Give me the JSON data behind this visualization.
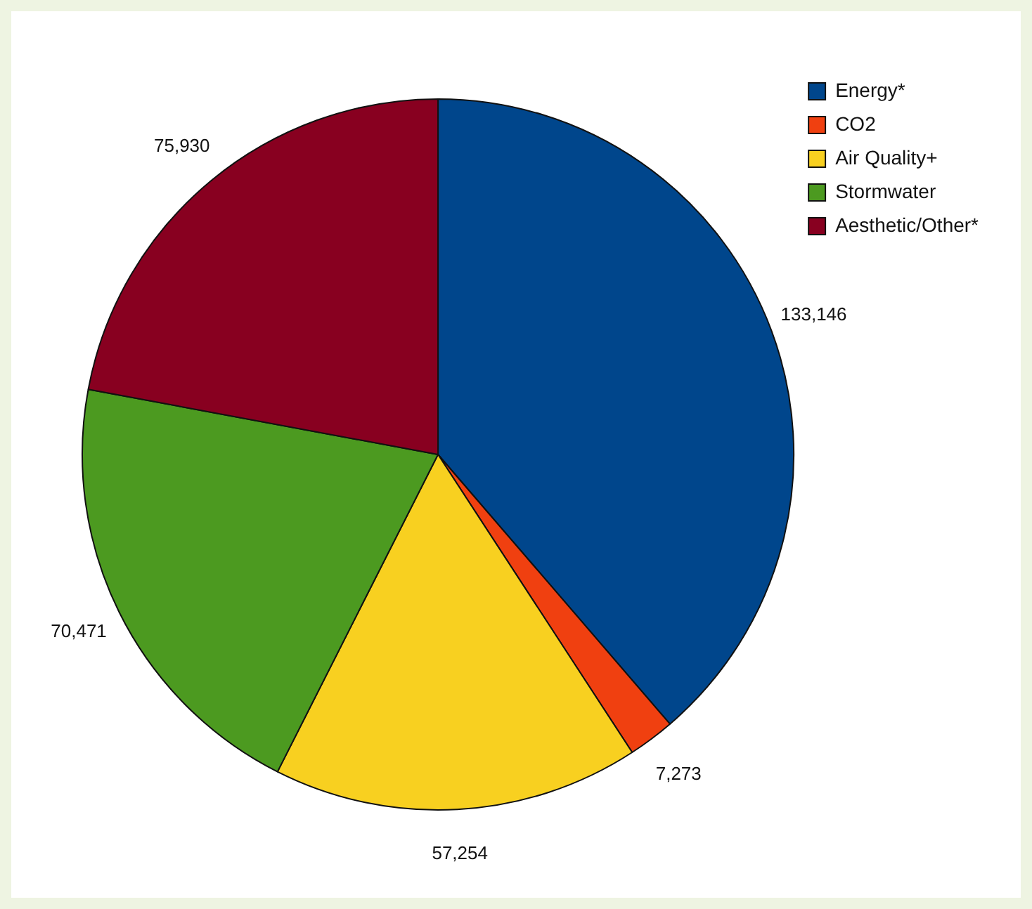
{
  "chart_data": {
    "type": "pie",
    "categories": [
      "Energy*",
      "CO2",
      "Air Quality+",
      "Stormwater",
      "Aesthetic/Other*"
    ],
    "values": [
      133146,
      7273,
      57254,
      70471,
      75930
    ],
    "colors": [
      "#00468c",
      "#f04010",
      "#f8d020",
      "#4c9a20",
      "#880020"
    ],
    "value_labels": [
      "133,146",
      "7,273",
      "57,254",
      "70,471",
      "75,930"
    ],
    "legend": "top right"
  }
}
